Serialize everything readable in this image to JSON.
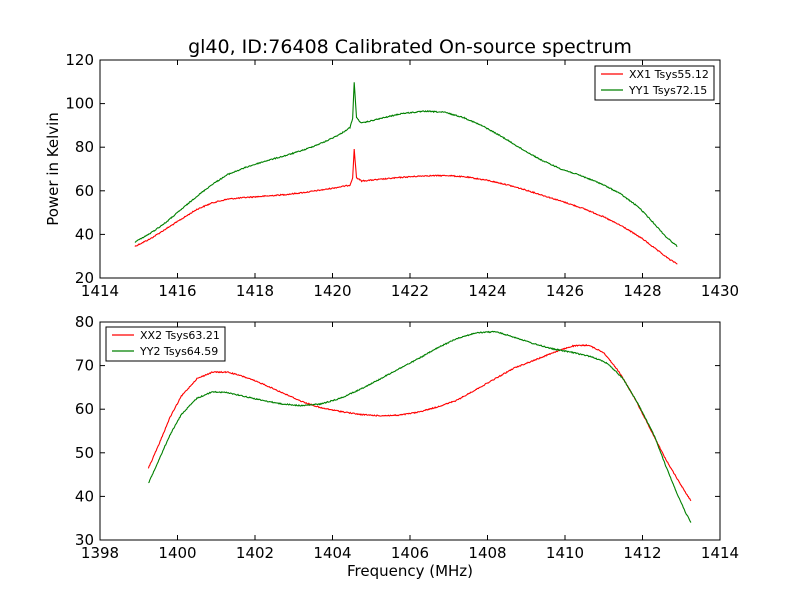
{
  "chart_data": [
    {
      "type": "line",
      "title": "gl40, ID:76408 Calibrated On-source spectrum",
      "xlabel": "",
      "ylabel": "Power in Kelvin",
      "xlim": [
        1414,
        1430
      ],
      "ylim": [
        20,
        120
      ],
      "xticks": [
        "1414",
        "1416",
        "1418",
        "1420",
        "1422",
        "1424",
        "1426",
        "1428",
        "1430"
      ],
      "yticks": [
        "20",
        "40",
        "60",
        "80",
        "100",
        "120"
      ],
      "grid": false,
      "legend_position": "top-right",
      "series": [
        {
          "name": "XX1 Tsys55.12",
          "color": "#ff0000",
          "points": [
            [
              1414.9,
              34.5
            ],
            [
              1415.3,
              38
            ],
            [
              1415.7,
              42.5
            ],
            [
              1416.1,
              47
            ],
            [
              1416.5,
              51.5
            ],
            [
              1416.9,
              54.5
            ],
            [
              1417.3,
              56.2
            ],
            [
              1417.8,
              57
            ],
            [
              1418.3,
              57.6
            ],
            [
              1418.8,
              58.3
            ],
            [
              1419.3,
              59.3
            ],
            [
              1419.8,
              60.6
            ],
            [
              1420.2,
              61.8
            ],
            [
              1420.45,
              62.6
            ],
            [
              1420.52,
              66
            ],
            [
              1420.56,
              79
            ],
            [
              1420.62,
              66
            ],
            [
              1420.75,
              64.5
            ],
            [
              1421.2,
              65.2
            ],
            [
              1421.8,
              66.2
            ],
            [
              1422.4,
              66.9
            ],
            [
              1423,
              67
            ],
            [
              1423.5,
              66.2
            ],
            [
              1424,
              64.8
            ],
            [
              1424.5,
              62.8
            ],
            [
              1425,
              60.3
            ],
            [
              1425.5,
              57.5
            ],
            [
              1426,
              54.7
            ],
            [
              1426.5,
              51.7
            ],
            [
              1427,
              48
            ],
            [
              1427.5,
              43.5
            ],
            [
              1428,
              38
            ],
            [
              1428.4,
              32.5
            ],
            [
              1428.7,
              28.5
            ],
            [
              1428.9,
              26.5
            ]
          ]
        },
        {
          "name": "YY1 Tsys72.15",
          "color": "#008000",
          "points": [
            [
              1414.9,
              36.5
            ],
            [
              1415.3,
              40.5
            ],
            [
              1415.7,
              45.5
            ],
            [
              1416.1,
              51.5
            ],
            [
              1416.5,
              57.5
            ],
            [
              1416.9,
              63
            ],
            [
              1417.3,
              67.5
            ],
            [
              1417.8,
              71
            ],
            [
              1418.3,
              73.8
            ],
            [
              1418.8,
              76.2
            ],
            [
              1419.3,
              79
            ],
            [
              1419.8,
              82.5
            ],
            [
              1420.2,
              86
            ],
            [
              1420.45,
              89
            ],
            [
              1420.52,
              93
            ],
            [
              1420.56,
              110
            ],
            [
              1420.62,
              93.5
            ],
            [
              1420.75,
              91
            ],
            [
              1421.2,
              93
            ],
            [
              1421.8,
              95.5
            ],
            [
              1422.4,
              96.5
            ],
            [
              1422.9,
              96
            ],
            [
              1423.4,
              93.5
            ],
            [
              1423.9,
              89.5
            ],
            [
              1424.4,
              84.5
            ],
            [
              1424.9,
              79
            ],
            [
              1425.4,
              74
            ],
            [
              1425.9,
              70
            ],
            [
              1426.4,
              67
            ],
            [
              1426.9,
              63.5
            ],
            [
              1427.4,
              59
            ],
            [
              1427.9,
              52.5
            ],
            [
              1428.3,
              45
            ],
            [
              1428.6,
              39
            ],
            [
              1428.9,
              34.5
            ]
          ]
        }
      ]
    },
    {
      "type": "line",
      "title": "",
      "xlabel": "Frequency (MHz)",
      "ylabel": "",
      "xlim": [
        1398,
        1414
      ],
      "ylim": [
        30,
        80
      ],
      "xticks": [
        "1398",
        "1400",
        "1402",
        "1404",
        "1406",
        "1408",
        "1410",
        "1412",
        "1414"
      ],
      "yticks": [
        "30",
        "40",
        "50",
        "60",
        "70",
        "80"
      ],
      "grid": false,
      "legend_position": "top-left",
      "series": [
        {
          "name": "XX2 Tsys63.21",
          "color": "#ff0000",
          "points": [
            [
              1399.25,
              46.5
            ],
            [
              1399.5,
              51.5
            ],
            [
              1399.8,
              58
            ],
            [
              1400.1,
              63
            ],
            [
              1400.5,
              67
            ],
            [
              1400.9,
              68.5
            ],
            [
              1401.3,
              68.5
            ],
            [
              1401.7,
              67.5
            ],
            [
              1402.2,
              65.8
            ],
            [
              1402.7,
              63.8
            ],
            [
              1403.2,
              61.8
            ],
            [
              1403.7,
              60.3
            ],
            [
              1404.2,
              59.5
            ],
            [
              1404.7,
              58.8
            ],
            [
              1405.2,
              58.5
            ],
            [
              1405.7,
              58.6
            ],
            [
              1406.2,
              59.3
            ],
            [
              1406.7,
              60.5
            ],
            [
              1407.2,
              62
            ],
            [
              1407.7,
              64.5
            ],
            [
              1408.2,
              67
            ],
            [
              1408.7,
              69.5
            ],
            [
              1409.2,
              71.2
            ],
            [
              1409.7,
              73
            ],
            [
              1410.2,
              74.5
            ],
            [
              1410.6,
              74.7
            ],
            [
              1411,
              73
            ],
            [
              1411.4,
              68.5
            ],
            [
              1411.8,
              62.5
            ],
            [
              1412.2,
              55.5
            ],
            [
              1412.6,
              48.5
            ],
            [
              1413,
              42.5
            ],
            [
              1413.25,
              39
            ]
          ]
        },
        {
          "name": "YY2 Tsys64.59",
          "color": "#008000",
          "points": [
            [
              1399.25,
              43
            ],
            [
              1399.5,
              48
            ],
            [
              1399.8,
              54
            ],
            [
              1400.1,
              58.8
            ],
            [
              1400.5,
              62.5
            ],
            [
              1400.9,
              64
            ],
            [
              1401.3,
              63.8
            ],
            [
              1401.7,
              63
            ],
            [
              1402.2,
              62
            ],
            [
              1402.7,
              61.2
            ],
            [
              1403.2,
              60.8
            ],
            [
              1403.7,
              61.2
            ],
            [
              1404.2,
              62.5
            ],
            [
              1404.7,
              64.5
            ],
            [
              1405.2,
              66.8
            ],
            [
              1405.7,
              69.2
            ],
            [
              1406.2,
              71.5
            ],
            [
              1406.7,
              74
            ],
            [
              1407.2,
              76.2
            ],
            [
              1407.7,
              77.5
            ],
            [
              1408.2,
              77.8
            ],
            [
              1408.7,
              76.5
            ],
            [
              1409.2,
              75
            ],
            [
              1409.7,
              73.8
            ],
            [
              1410.2,
              73
            ],
            [
              1410.7,
              72
            ],
            [
              1411.1,
              70.5
            ],
            [
              1411.5,
              67
            ],
            [
              1411.9,
              61
            ],
            [
              1412.3,
              54
            ],
            [
              1412.6,
              47
            ],
            [
              1412.9,
              40.5
            ],
            [
              1413.1,
              36.5
            ],
            [
              1413.25,
              34
            ]
          ]
        }
      ]
    }
  ]
}
